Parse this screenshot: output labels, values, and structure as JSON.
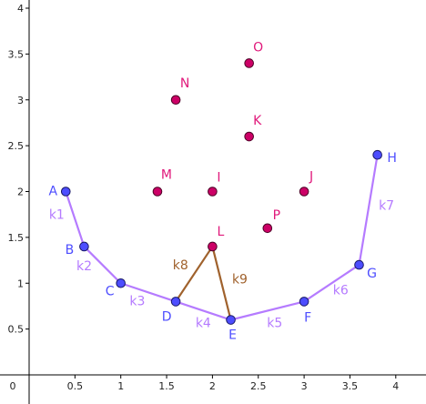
{
  "colors": {
    "polyline": "#b57bff",
    "brown_segments": "#a0622d",
    "blue_point_fill": "#4d4dff",
    "blue_label": "#4d4dff",
    "pink_point_fill": "#cc0066",
    "pink_label": "#e0197b",
    "axis": "#000000"
  },
  "chart_data": {
    "type": "scatter",
    "title": "",
    "xlabel": "",
    "ylabel": "",
    "xlim": [
      0,
      4
    ],
    "ylim": [
      0,
      4
    ],
    "x_ticks": [
      "0",
      "0.5",
      "1",
      "1.5",
      "2",
      "2.5",
      "3",
      "3.5",
      "4"
    ],
    "x_tick_values": [
      0,
      0.5,
      1,
      1.5,
      2,
      2.5,
      3,
      3.5,
      4
    ],
    "y_ticks": [
      "0.5",
      "1",
      "1.5",
      "2",
      "2.5",
      "3",
      "3.5",
      "4"
    ],
    "y_tick_values": [
      0.5,
      1,
      1.5,
      2,
      2.5,
      3,
      3.5,
      4
    ],
    "polyline_points": [
      {
        "name": "A",
        "x": 0.4,
        "y": 2.0
      },
      {
        "name": "B",
        "x": 0.6,
        "y": 1.4
      },
      {
        "name": "C",
        "x": 1.0,
        "y": 1.0
      },
      {
        "name": "D",
        "x": 1.6,
        "y": 0.8
      },
      {
        "name": "E",
        "x": 2.2,
        "y": 0.6
      },
      {
        "name": "F",
        "x": 3.0,
        "y": 0.8
      },
      {
        "name": "G",
        "x": 3.6,
        "y": 1.2
      },
      {
        "name": "H",
        "x": 3.8,
        "y": 2.4
      }
    ],
    "polyline_segments": [
      {
        "name": "k1",
        "from": "A",
        "to": "B"
      },
      {
        "name": "k2",
        "from": "B",
        "to": "C"
      },
      {
        "name": "k3",
        "from": "C",
        "to": "D"
      },
      {
        "name": "k4",
        "from": "D",
        "to": "E"
      },
      {
        "name": "k5",
        "from": "E",
        "to": "F"
      },
      {
        "name": "k6",
        "from": "F",
        "to": "G"
      },
      {
        "name": "k7",
        "from": "G",
        "to": "H"
      }
    ],
    "extra_segments": [
      {
        "name": "k8",
        "from": "D",
        "to": "L"
      },
      {
        "name": "k9",
        "from": "L",
        "to": "E"
      }
    ],
    "free_points": [
      {
        "name": "I",
        "x": 2.0,
        "y": 2.0
      },
      {
        "name": "J",
        "x": 3.0,
        "y": 2.0
      },
      {
        "name": "K",
        "x": 2.4,
        "y": 2.6
      },
      {
        "name": "L",
        "x": 2.0,
        "y": 1.4
      },
      {
        "name": "M",
        "x": 1.4,
        "y": 2.0
      },
      {
        "name": "N",
        "x": 1.6,
        "y": 3.0
      },
      {
        "name": "O",
        "x": 2.4,
        "y": 3.4
      },
      {
        "name": "P",
        "x": 2.6,
        "y": 1.6
      }
    ]
  }
}
